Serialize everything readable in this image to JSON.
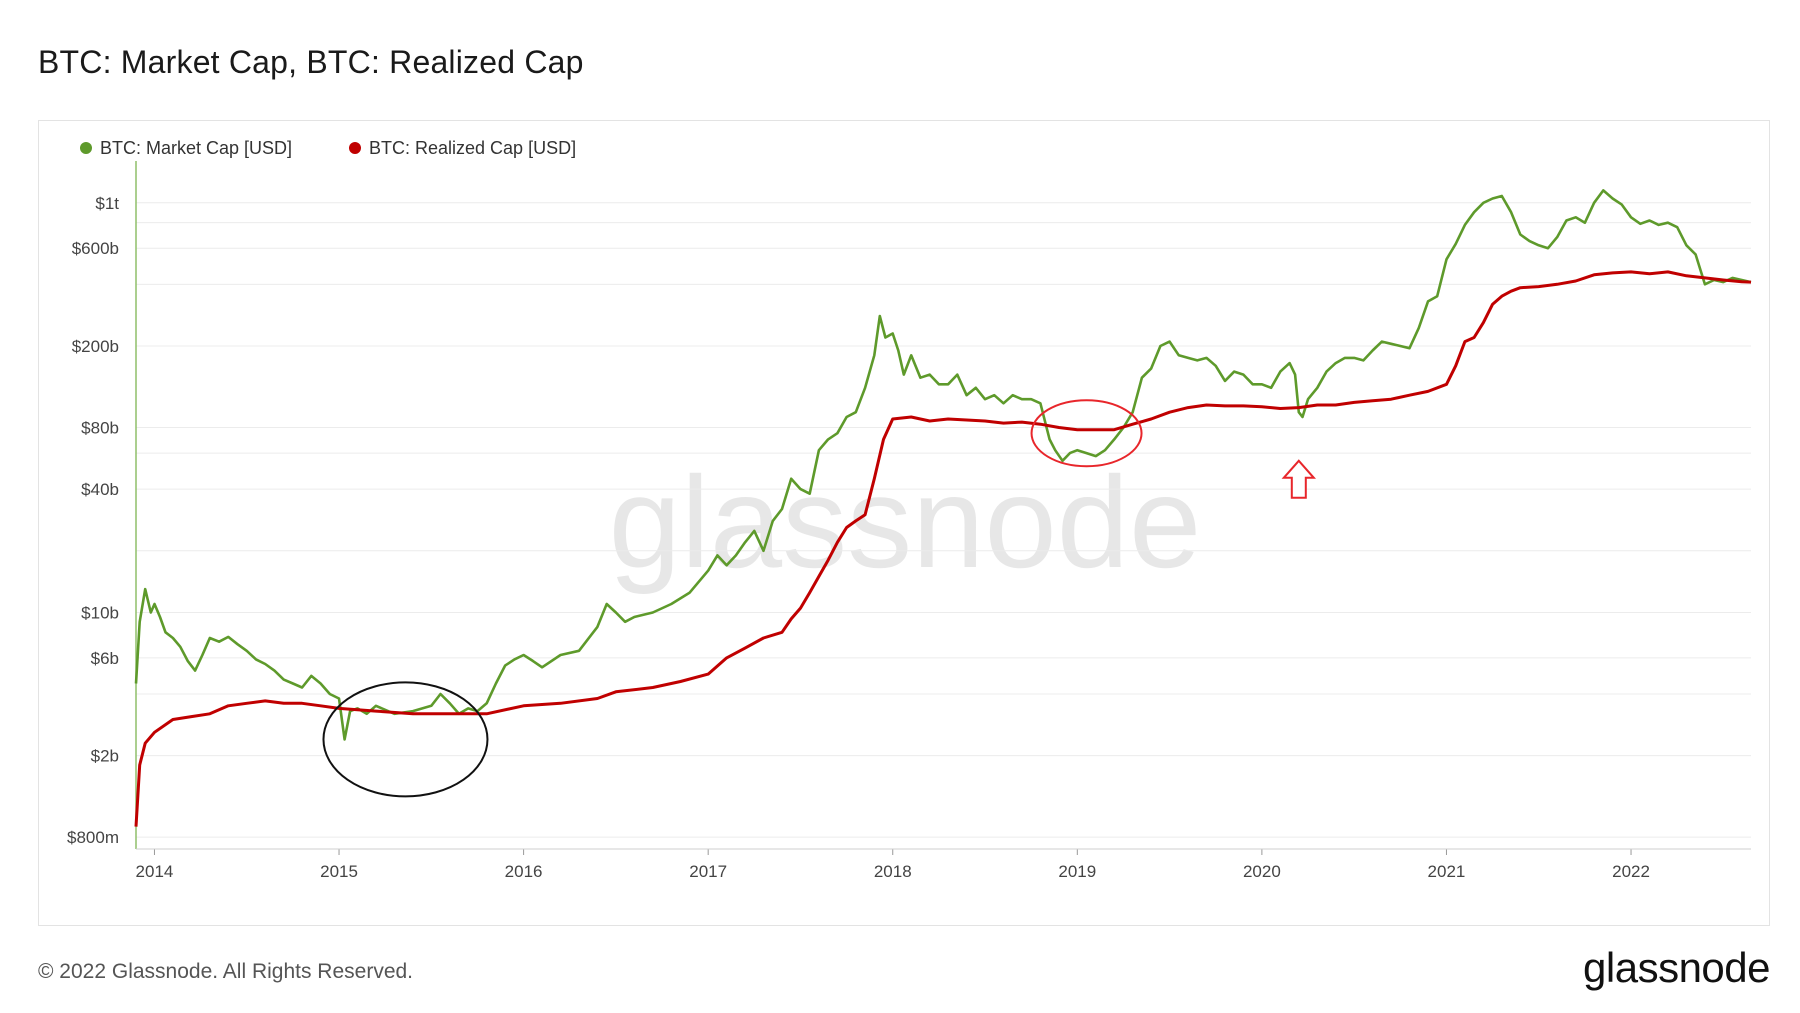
{
  "title": "BTC: Market Cap, BTC: Realized Cap",
  "footer": {
    "copyright": "© 2022 Glassnode. All Rights Reserved.",
    "logo": "glassnode"
  },
  "watermark": "glassnode",
  "colors": {
    "market_cap": "#5e9a2b",
    "realized_cap": "#c00000",
    "annotation_black": "#111111",
    "annotation_red": "#e8262b"
  },
  "chart_data": {
    "type": "line",
    "title": "BTC: Market Cap, BTC: Realized Cap",
    "xlabel": "",
    "ylabel": "",
    "y_scale": "log",
    "ylim": [
      700000000,
      1600000000000
    ],
    "xlim": [
      2013.9,
      2022.65
    ],
    "grid": true,
    "legend_position": "top-left",
    "x_ticks": [
      {
        "value": 2014,
        "label": "2014"
      },
      {
        "value": 2015,
        "label": "2015"
      },
      {
        "value": 2016,
        "label": "2016"
      },
      {
        "value": 2017,
        "label": "2017"
      },
      {
        "value": 2018,
        "label": "2018"
      },
      {
        "value": 2019,
        "label": "2019"
      },
      {
        "value": 2020,
        "label": "2020"
      },
      {
        "value": 2021,
        "label": "2021"
      },
      {
        "value": 2022,
        "label": "2022"
      }
    ],
    "y_ticks": [
      {
        "value": 800000000,
        "label": "$800m"
      },
      {
        "value": 2000000000,
        "label": "$2b"
      },
      {
        "value": 6000000000,
        "label": "$6b"
      },
      {
        "value": 10000000000,
        "label": "$10b"
      },
      {
        "value": 40000000000,
        "label": "$40b"
      },
      {
        "value": 80000000000,
        "label": "$80b"
      },
      {
        "value": 200000000000,
        "label": "$200b"
      },
      {
        "value": 600000000000,
        "label": "$600b"
      },
      {
        "value": 1000000000000,
        "label": "$1t"
      }
    ],
    "series": [
      {
        "name": "BTC: Market Cap [USD]",
        "color": "#5e9a2b",
        "x": [
          2013.9,
          2013.92,
          2013.95,
          2013.98,
          2014.0,
          2014.03,
          2014.06,
          2014.1,
          2014.14,
          2014.18,
          2014.22,
          2014.26,
          2014.3,
          2014.35,
          2014.4,
          2014.45,
          2014.5,
          2014.55,
          2014.6,
          2014.65,
          2014.7,
          2014.75,
          2014.8,
          2014.85,
          2014.9,
          2014.95,
          2015.0,
          2015.03,
          2015.06,
          2015.1,
          2015.15,
          2015.2,
          2015.3,
          2015.4,
          2015.5,
          2015.55,
          2015.6,
          2015.65,
          2015.7,
          2015.75,
          2015.8,
          2015.85,
          2015.9,
          2015.95,
          2016.0,
          2016.05,
          2016.1,
          2016.2,
          2016.3,
          2016.4,
          2016.45,
          2016.5,
          2016.55,
          2016.6,
          2016.7,
          2016.8,
          2016.9,
          2017.0,
          2017.05,
          2017.1,
          2017.15,
          2017.2,
          2017.25,
          2017.3,
          2017.35,
          2017.4,
          2017.45,
          2017.5,
          2017.55,
          2017.6,
          2017.65,
          2017.7,
          2017.75,
          2017.8,
          2017.85,
          2017.9,
          2017.93,
          2017.96,
          2018.0,
          2018.03,
          2018.06,
          2018.1,
          2018.15,
          2018.2,
          2018.25,
          2018.3,
          2018.35,
          2018.4,
          2018.45,
          2018.5,
          2018.55,
          2018.6,
          2018.65,
          2018.7,
          2018.75,
          2018.8,
          2018.85,
          2018.88,
          2018.92,
          2018.96,
          2019.0,
          2019.05,
          2019.1,
          2019.15,
          2019.2,
          2019.25,
          2019.3,
          2019.35,
          2019.4,
          2019.45,
          2019.5,
          2019.55,
          2019.6,
          2019.65,
          2019.7,
          2019.75,
          2019.8,
          2019.85,
          2019.9,
          2019.95,
          2020.0,
          2020.05,
          2020.1,
          2020.15,
          2020.18,
          2020.2,
          2020.22,
          2020.25,
          2020.3,
          2020.35,
          2020.4,
          2020.45,
          2020.5,
          2020.55,
          2020.6,
          2020.65,
          2020.7,
          2020.75,
          2020.8,
          2020.85,
          2020.9,
          2020.95,
          2021.0,
          2021.05,
          2021.1,
          2021.15,
          2021.2,
          2021.25,
          2021.3,
          2021.35,
          2021.4,
          2021.45,
          2021.5,
          2021.55,
          2021.6,
          2021.65,
          2021.7,
          2021.75,
          2021.8,
          2021.85,
          2021.9,
          2021.95,
          2022.0,
          2022.05,
          2022.1,
          2022.15,
          2022.2,
          2022.25,
          2022.3,
          2022.35,
          2022.4,
          2022.45,
          2022.5,
          2022.55,
          2022.6,
          2022.65
        ],
        "y": [
          4500000000.0,
          9000000000.0,
          13000000000.0,
          10000000000.0,
          11000000000.0,
          9500000000.0,
          8000000000.0,
          7500000000.0,
          6800000000.0,
          5800000000.0,
          5200000000.0,
          6200000000.0,
          7500000000.0,
          7200000000.0,
          7600000000.0,
          7000000000.0,
          6500000000.0,
          5900000000.0,
          5600000000.0,
          5200000000.0,
          4700000000.0,
          4500000000.0,
          4300000000.0,
          4900000000.0,
          4500000000.0,
          4000000000.0,
          3800000000.0,
          2400000000.0,
          3300000000.0,
          3400000000.0,
          3200000000.0,
          3500000000.0,
          3200000000.0,
          3300000000.0,
          3500000000.0,
          4000000000.0,
          3600000000.0,
          3200000000.0,
          3400000000.0,
          3300000000.0,
          3600000000.0,
          4500000000.0,
          5500000000.0,
          5900000000.0,
          6200000000.0,
          5800000000.0,
          5400000000.0,
          6200000000.0,
          6500000000.0,
          8500000000.0,
          11000000000.0,
          10000000000.0,
          9000000000.0,
          9500000000.0,
          10000000000.0,
          11000000000.0,
          12500000000.0,
          16000000000.0,
          19000000000.0,
          17000000000.0,
          19000000000.0,
          22000000000.0,
          25000000000.0,
          20000000000.0,
          28000000000.0,
          32000000000.0,
          45000000000.0,
          40000000000.0,
          38000000000.0,
          62000000000.0,
          70000000000.0,
          75000000000.0,
          90000000000.0,
          95000000000.0,
          125000000000.0,
          180000000000.0,
          280000000000.0,
          220000000000.0,
          230000000000.0,
          190000000000.0,
          145000000000.0,
          180000000000.0,
          140000000000.0,
          145000000000.0,
          130000000000.0,
          130000000000.0,
          145000000000.0,
          115000000000.0,
          125000000000.0,
          110000000000.0,
          115000000000.0,
          105000000000.0,
          115000000000.0,
          110000000000.0,
          110000000000.0,
          105000000000.0,
          70000000000.0,
          62000000000.0,
          55000000000.0,
          60000000000.0,
          62000000000.0,
          60000000000.0,
          58000000000.0,
          62000000000.0,
          70000000000.0,
          80000000000.0,
          95000000000.0,
          140000000000.0,
          155000000000.0,
          200000000000.0,
          210000000000.0,
          180000000000.0,
          175000000000.0,
          170000000000.0,
          175000000000.0,
          160000000000.0,
          135000000000.0,
          150000000000.0,
          145000000000.0,
          130000000000.0,
          130000000000.0,
          125000000000.0,
          150000000000.0,
          165000000000.0,
          145000000000.0,
          95000000000.0,
          90000000000.0,
          110000000000.0,
          125000000000.0,
          150000000000.0,
          165000000000.0,
          175000000000.0,
          175000000000.0,
          170000000000.0,
          190000000000.0,
          210000000000.0,
          205000000000.0,
          200000000000.0,
          195000000000.0,
          245000000000.0,
          330000000000.0,
          350000000000.0,
          530000000000.0,
          630000000000.0,
          780000000000.0,
          900000000000.0,
          1000000000000.0,
          1050000000000.0,
          1080000000000.0,
          900000000000.0,
          700000000000.0,
          650000000000.0,
          620000000000.0,
          600000000000.0,
          680000000000.0,
          820000000000.0,
          850000000000.0,
          800000000000.0,
          1000000000000.0,
          1150000000000.0,
          1050000000000.0,
          980000000000.0,
          850000000000.0,
          790000000000.0,
          820000000000.0,
          780000000000.0,
          800000000000.0,
          760000000000.0,
          620000000000.0,
          560000000000.0,
          400000000000.0,
          420000000000.0,
          410000000000.0,
          430000000000.0,
          420000000000.0,
          410000000000.0
        ]
      },
      {
        "name": "BTC: Realized Cap [USD]",
        "color": "#c00000",
        "x": [
          2013.9,
          2013.92,
          2013.95,
          2014.0,
          2014.1,
          2014.2,
          2014.3,
          2014.4,
          2014.5,
          2014.6,
          2014.7,
          2014.8,
          2014.9,
          2015.0,
          2015.2,
          2015.4,
          2015.6,
          2015.8,
          2016.0,
          2016.2,
          2016.4,
          2016.5,
          2016.7,
          2016.85,
          2017.0,
          2017.1,
          2017.2,
          2017.3,
          2017.4,
          2017.45,
          2017.5,
          2017.55,
          2017.6,
          2017.65,
          2017.7,
          2017.75,
          2017.8,
          2017.85,
          2017.9,
          2017.95,
          2018.0,
          2018.1,
          2018.2,
          2018.3,
          2018.4,
          2018.5,
          2018.6,
          2018.7,
          2018.8,
          2018.9,
          2019.0,
          2019.1,
          2019.2,
          2019.3,
          2019.4,
          2019.5,
          2019.6,
          2019.7,
          2019.8,
          2019.9,
          2020.0,
          2020.1,
          2020.2,
          2020.3,
          2020.4,
          2020.5,
          2020.6,
          2020.7,
          2020.8,
          2020.9,
          2021.0,
          2021.05,
          2021.1,
          2021.15,
          2021.2,
          2021.25,
          2021.3,
          2021.35,
          2021.4,
          2021.5,
          2021.6,
          2021.7,
          2021.8,
          2021.9,
          2022.0,
          2022.1,
          2022.2,
          2022.3,
          2022.4,
          2022.5,
          2022.6,
          2022.65
        ],
        "y": [
          900000000.0,
          1800000000.0,
          2300000000.0,
          2600000000.0,
          3000000000.0,
          3100000000.0,
          3200000000.0,
          3500000000.0,
          3600000000.0,
          3700000000.0,
          3600000000.0,
          3600000000.0,
          3500000000.0,
          3400000000.0,
          3300000000.0,
          3200000000.0,
          3200000000.0,
          3200000000.0,
          3500000000.0,
          3600000000.0,
          3800000000.0,
          4100000000.0,
          4300000000.0,
          4600000000.0,
          5000000000.0,
          6000000000.0,
          6700000000.0,
          7500000000.0,
          8000000000.0,
          9300000000.0,
          10500000000.0,
          12500000000.0,
          15000000000.0,
          18000000000.0,
          22000000000.0,
          26000000000.0,
          28000000000.0,
          30000000000.0,
          45000000000.0,
          70000000000.0,
          88000000000.0,
          90000000000.0,
          86000000000.0,
          88000000000.0,
          87000000000.0,
          86000000000.0,
          84000000000.0,
          85000000000.0,
          83000000000.0,
          80000000000.0,
          78000000000.0,
          78000000000.0,
          78000000000.0,
          83000000000.0,
          88000000000.0,
          95000000000.0,
          100000000000.0,
          103000000000.0,
          102000000000.0,
          102000000000.0,
          101000000000.0,
          99000000000.0,
          100000000000.0,
          103000000000.0,
          103000000000.0,
          106000000000.0,
          108000000000.0,
          110000000000.0,
          115000000000.0,
          120000000000.0,
          130000000000.0,
          160000000000.0,
          210000000000.0,
          220000000000.0,
          260000000000.0,
          320000000000.0,
          350000000000.0,
          370000000000.0,
          385000000000.0,
          390000000000.0,
          400000000000.0,
          415000000000.0,
          445000000000.0,
          455000000000.0,
          460000000000.0,
          450000000000.0,
          460000000000.0,
          440000000000.0,
          430000000000.0,
          420000000000.0,
          412000000000.0,
          410000000000.0
        ]
      }
    ]
  },
  "annotations": {
    "black_ellipse": {
      "x": 2015.36,
      "y": 2400000000.0
    },
    "red_ellipse": {
      "x": 2019.05,
      "y": 75000000000.0
    },
    "red_arrow": {
      "x": 2020.2,
      "y": 55000000000.0
    }
  }
}
